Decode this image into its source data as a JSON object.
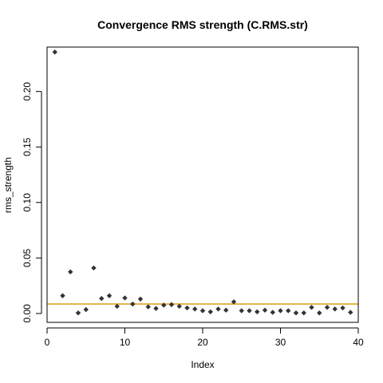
{
  "chart_data": {
    "type": "scatter",
    "title": "Convergence RMS strength (C.RMS.str)",
    "xlabel": "Index",
    "ylabel": "rms_strength",
    "xlim": [
      0,
      40
    ],
    "ylim": [
      -0.008,
      0.24
    ],
    "x_ticks": [
      0,
      10,
      20,
      30,
      40
    ],
    "y_ticks": [
      0.0,
      0.05,
      0.1,
      0.15,
      0.2
    ],
    "y_tick_labels": [
      "0.00",
      "0.05",
      "0.10",
      "0.15",
      "0.20"
    ],
    "grid": false,
    "marker": "diamond",
    "marker_color": "#333333",
    "reference_line": {
      "y": 0.0085,
      "color": "#e6b34d"
    },
    "x": [
      1,
      2,
      3,
      4,
      5,
      6,
      7,
      8,
      9,
      10,
      11,
      12,
      13,
      14,
      15,
      16,
      17,
      18,
      19,
      20,
      21,
      22,
      23,
      24,
      25,
      26,
      27,
      28,
      29,
      30,
      31,
      32,
      33,
      34,
      35,
      36,
      37,
      38,
      39
    ],
    "y": [
      0.2355,
      0.016,
      0.0375,
      0.0005,
      0.0035,
      0.041,
      0.0135,
      0.016,
      0.0065,
      0.014,
      0.0085,
      0.013,
      0.006,
      0.0045,
      0.0075,
      0.008,
      0.0065,
      0.005,
      0.004,
      0.0025,
      0.0015,
      0.004,
      0.003,
      0.0105,
      0.0025,
      0.0025,
      0.0015,
      0.003,
      0.001,
      0.0025,
      0.0025,
      0.0005,
      0.0005,
      0.0055,
      0.0005,
      0.0055,
      0.004,
      0.005,
      0.001
    ]
  }
}
